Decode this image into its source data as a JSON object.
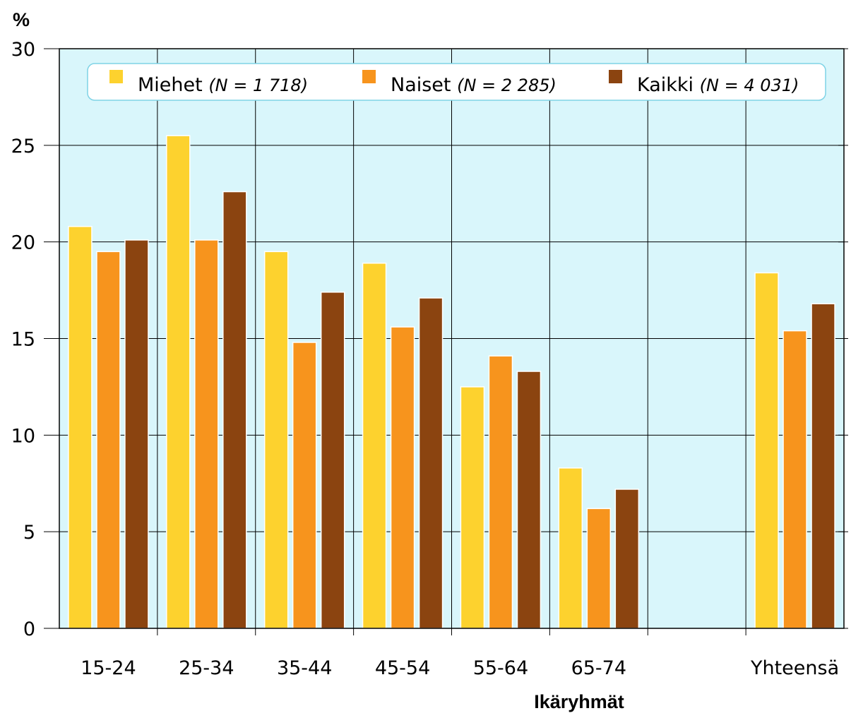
{
  "chart_data": {
    "type": "bar",
    "ylabel": "%",
    "xlabel": "Ikäryhmät",
    "ylim": [
      0,
      30
    ],
    "yticks": [
      0,
      5,
      10,
      15,
      20,
      25,
      30
    ],
    "grid": true,
    "legend_position": "top",
    "categories": [
      "15-24",
      "25-34",
      "35-44",
      "45-54",
      "55-64",
      "65-74",
      "",
      "Yhteensä"
    ],
    "series": [
      {
        "name": "Miehet",
        "note": "(N = 1 718)",
        "color": "#FDD22E",
        "values": [
          20.8,
          25.5,
          19.5,
          18.9,
          12.5,
          8.3,
          null,
          18.4
        ]
      },
      {
        "name": "Naiset",
        "note": "(N = 2 285)",
        "color": "#F7941D",
        "values": [
          19.5,
          20.1,
          14.8,
          15.6,
          14.1,
          6.2,
          null,
          15.4
        ]
      },
      {
        "name": "Kaikki",
        "note": "(N = 4 031)",
        "color": "#8B4410",
        "values": [
          20.1,
          22.6,
          17.4,
          17.1,
          13.3,
          7.2,
          null,
          16.8
        ]
      }
    ],
    "colors": {
      "plot_background": "#D9F6FB",
      "legend_border": "#7FD3E6"
    }
  }
}
